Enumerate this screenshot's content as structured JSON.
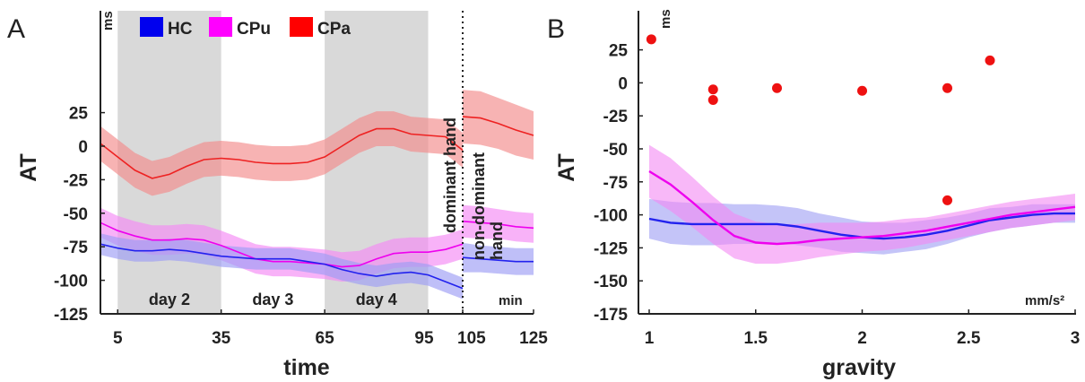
{
  "chart_data": [
    {
      "panel_label": "A",
      "type": "line",
      "ylabel": "AT",
      "xlabel": "time",
      "y_unit": "ms",
      "x_unit": "min",
      "ylim": [
        -125,
        45
      ],
      "yticks": [
        -125,
        -100,
        -75,
        -50,
        -25,
        0,
        25
      ],
      "ytick_labels": [
        "-125",
        "-100",
        "-75",
        "-50",
        "-25",
        "0",
        "25"
      ],
      "xticks": [
        5,
        35,
        65,
        95,
        105,
        125
      ],
      "xtick_labels": [
        "5",
        "35",
        "65",
        "95",
        "105",
        "125"
      ],
      "legend_position": "top-left",
      "legend": [
        {
          "name": "HC",
          "color": "#0000ee"
        },
        {
          "name": "CPu",
          "color": "#ff00ff"
        },
        {
          "name": "CPa",
          "color": "#ff0000"
        }
      ],
      "shaded_periods": [
        {
          "x0": 5,
          "x1": 35,
          "label": "day 2"
        },
        {
          "x0": 65,
          "x1": 95,
          "label": "day 4"
        }
      ],
      "period_labels": [
        {
          "x": 20,
          "label": "day 2"
        },
        {
          "x": 50,
          "label": "day 3"
        },
        {
          "x": 80,
          "label": "day 4"
        }
      ],
      "divider_x": 105,
      "divider_labels": [
        "dominant hand",
        "non-dominant hand"
      ],
      "series": [
        {
          "name": "CPa",
          "color": "#ee2222",
          "band_color": "#f28a8a",
          "x": [
            0,
            5,
            10,
            15,
            20,
            25,
            30,
            35,
            40,
            45,
            50,
            55,
            60,
            65,
            70,
            75,
            80,
            85,
            90,
            95,
            100,
            105
          ],
          "values": [
            2,
            -8,
            -18,
            -24,
            -21,
            -15,
            -10,
            -9,
            -10,
            -12,
            -13,
            -13,
            -12,
            -8,
            0,
            8,
            13,
            13,
            9,
            8,
            7,
            -3
          ],
          "band_halfwidth": [
            13,
            13,
            13,
            13,
            13,
            13,
            13,
            13,
            13,
            13,
            13,
            13,
            13,
            13,
            13,
            13,
            13,
            13,
            13,
            13,
            13,
            13
          ]
        },
        {
          "name": "CPa",
          "color": "#ee2222",
          "band_color": "#f28a8a",
          "x": [
            105,
            110,
            115,
            120,
            125
          ],
          "values": [
            22,
            21,
            17,
            12,
            8
          ],
          "band_halfwidth": [
            20,
            20,
            19,
            19,
            18
          ]
        },
        {
          "name": "CPu",
          "color": "#ee00ee",
          "band_color": "#f488f4",
          "x": [
            0,
            5,
            10,
            15,
            20,
            25,
            30,
            35,
            40,
            45,
            50,
            55,
            60,
            65,
            70,
            75,
            80,
            85,
            90,
            95,
            100,
            105
          ],
          "values": [
            -57,
            -63,
            -67,
            -70,
            -70,
            -69,
            -70,
            -74,
            -79,
            -84,
            -86,
            -86,
            -87,
            -88,
            -90,
            -89,
            -84,
            -80,
            -79,
            -79,
            -77,
            -73
          ],
          "band_halfwidth": [
            11,
            11,
            11,
            11,
            11,
            11,
            11,
            11,
            11,
            11,
            11,
            11,
            11,
            11,
            11,
            11,
            11,
            11,
            11,
            11,
            11,
            11
          ]
        },
        {
          "name": "CPu",
          "color": "#ee00ee",
          "band_color": "#f488f4",
          "x": [
            105,
            110,
            115,
            120,
            125
          ],
          "values": [
            -56,
            -57,
            -58,
            -60,
            -61
          ],
          "band_halfwidth": [
            12,
            12,
            11,
            11,
            11
          ]
        },
        {
          "name": "HC",
          "color": "#2222ee",
          "band_color": "#9c9cf4",
          "x": [
            0,
            5,
            10,
            15,
            20,
            25,
            30,
            35,
            40,
            45,
            50,
            55,
            60,
            65,
            70,
            75,
            80,
            85,
            90,
            95,
            100,
            105
          ],
          "values": [
            -73,
            -76,
            -78,
            -78,
            -77,
            -78,
            -80,
            -82,
            -83,
            -84,
            -84,
            -84,
            -86,
            -88,
            -92,
            -95,
            -97,
            -95,
            -94,
            -96,
            -101,
            -106
          ],
          "band_halfwidth": [
            8,
            8,
            8,
            8,
            8,
            8,
            8,
            8,
            8,
            8,
            8,
            8,
            8,
            8,
            8,
            8,
            8,
            8,
            8,
            8,
            8,
            8
          ]
        },
        {
          "name": "HC",
          "color": "#2222ee",
          "band_color": "#9c9cf4",
          "x": [
            105,
            110,
            115,
            120,
            125
          ],
          "values": [
            -83,
            -84,
            -85,
            -86,
            -86
          ],
          "band_halfwidth": [
            11,
            10,
            10,
            10,
            10
          ]
        }
      ]
    },
    {
      "panel_label": "B",
      "type": "line",
      "ylabel": "AT",
      "xlabel": "gravity",
      "y_unit": "ms",
      "x_unit": "mm/s²",
      "ylim": [
        -175,
        45
      ],
      "yticks": [
        -175,
        -150,
        -125,
        -100,
        -75,
        -50,
        -25,
        0,
        25
      ],
      "ytick_labels": [
        "-175",
        "-150",
        "-125",
        "-100",
        "-75",
        "-50",
        "-25",
        "0",
        "25"
      ],
      "xlim": [
        1,
        3
      ],
      "xticks": [
        1,
        1.5,
        2,
        2.5,
        3
      ],
      "xtick_labels": [
        "1",
        "1.5",
        "2",
        "2.5",
        "3"
      ],
      "series": [
        {
          "name": "HC",
          "color": "#2222ee",
          "band_color": "#9c9cf4",
          "x": [
            1,
            1.1,
            1.2,
            1.3,
            1.4,
            1.5,
            1.6,
            1.7,
            1.8,
            1.9,
            2,
            2.1,
            2.2,
            2.3,
            2.4,
            2.5,
            2.6,
            2.7,
            2.8,
            2.9,
            3
          ],
          "values": [
            -103,
            -106,
            -107,
            -107,
            -107,
            -107,
            -107,
            -109,
            -112,
            -115,
            -117,
            -118,
            -117,
            -115,
            -112,
            -108,
            -104,
            -102,
            -100,
            -99,
            -99
          ],
          "band_halfwidth": [
            15,
            16,
            16,
            16,
            15,
            15,
            14,
            14,
            13,
            13,
            12,
            12,
            11,
            11,
            10,
            9,
            9,
            8,
            8,
            7,
            7
          ]
        },
        {
          "name": "CPu",
          "color": "#ee00ee",
          "band_color": "#f488f4",
          "x": [
            1,
            1.1,
            1.2,
            1.3,
            1.4,
            1.5,
            1.6,
            1.7,
            1.8,
            1.9,
            2,
            2.1,
            2.2,
            2.3,
            2.4,
            2.5,
            2.6,
            2.7,
            2.8,
            2.9,
            3
          ],
          "values": [
            -67,
            -77,
            -90,
            -104,
            -116,
            -121,
            -122,
            -121,
            -119,
            -118,
            -117,
            -116,
            -114,
            -112,
            -109,
            -106,
            -103,
            -100,
            -98,
            -96,
            -94
          ],
          "band_halfwidth": [
            20,
            20,
            19,
            18,
            17,
            16,
            15,
            14,
            13,
            12,
            11,
            11,
            11,
            10,
            10,
            10,
            10,
            10,
            10,
            10,
            10
          ]
        },
        {
          "name": "CPa",
          "color": "#ee1111",
          "type": "scatter",
          "x": [
            1.01,
            1.3,
            1.3,
            1.6,
            2,
            2.4,
            2.4,
            2.6
          ],
          "values": [
            33,
            -5,
            -13,
            -4,
            -6,
            -4,
            -89,
            17
          ]
        }
      ]
    }
  ]
}
